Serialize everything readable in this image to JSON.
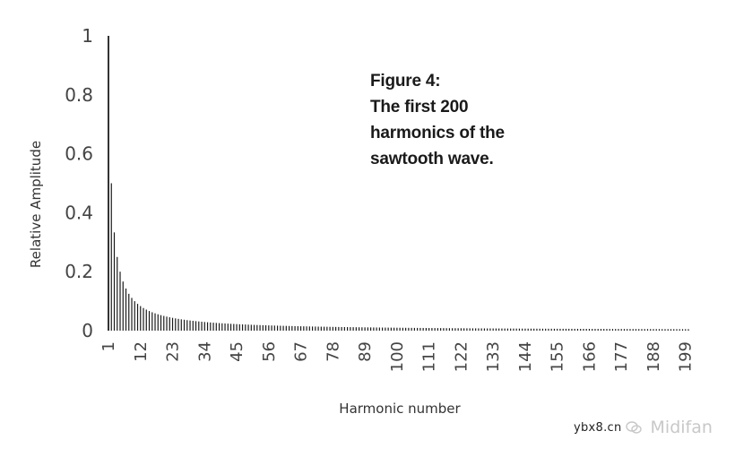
{
  "chart_data": {
    "type": "bar",
    "title": "",
    "xlabel": "Harmonic number",
    "ylabel": "Relative Amplitude",
    "ylim": [
      0,
      1
    ],
    "xlim": [
      1,
      200
    ],
    "grid": false,
    "legend": "none",
    "bar_color": "#1a1a1a",
    "amplitude_rule": "1/n",
    "harmonic_count": 200,
    "y_ticks": [
      "0",
      "0.2",
      "0.4",
      "0.6",
      "0.8",
      "1"
    ],
    "y_tick_values": [
      0,
      0.2,
      0.4,
      0.6,
      0.8,
      1
    ],
    "x_ticks": [
      "1",
      "12",
      "23",
      "34",
      "45",
      "56",
      "67",
      "78",
      "89",
      "100",
      "111",
      "122",
      "133",
      "144",
      "155",
      "166",
      "177",
      "188",
      "199"
    ],
    "sample_values": [
      {
        "x": 1,
        "y": 1.0
      },
      {
        "x": 2,
        "y": 0.5
      },
      {
        "x": 3,
        "y": 0.333
      },
      {
        "x": 4,
        "y": 0.25
      },
      {
        "x": 5,
        "y": 0.2
      },
      {
        "x": 10,
        "y": 0.1
      },
      {
        "x": 20,
        "y": 0.05
      },
      {
        "x": 50,
        "y": 0.02
      },
      {
        "x": 100,
        "y": 0.01
      },
      {
        "x": 200,
        "y": 0.005
      }
    ]
  },
  "annotation": {
    "line1": "Figure 4:",
    "line2": "The first 200",
    "line3": "harmonics of the",
    "line4": "sawtooth wave."
  },
  "watermark": {
    "domain": "ybx8.cn",
    "brand": "Midifan",
    "icon": "wechat-icon"
  }
}
